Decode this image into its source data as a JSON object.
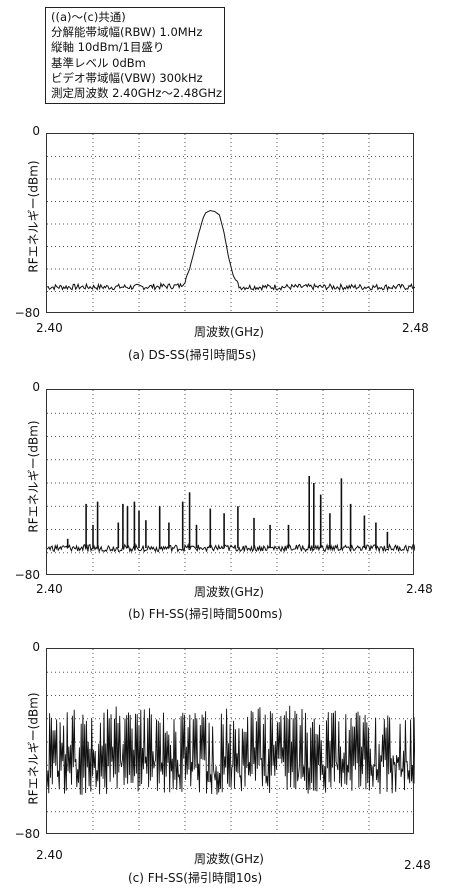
{
  "legend": {
    "lines": [
      "((a)～(c)共通)",
      "分解能帯域幅(RBW) 1.0MHz",
      "縦軸 10dBm/1目盛り",
      "基準レベル 0dBm",
      "ビデオ帯域幅(VBW) 300kHz",
      "測定周波数 2.40GHz～2.48GHz"
    ]
  },
  "chart_data": [
    {
      "type": "line",
      "title": "",
      "caption": "(a) DS-SS(掃引時間5s)",
      "xlabel": "周波数(GHz)",
      "ylabel": "RFエネルギー(dBm)",
      "x_tick_labels": [
        "2.40",
        "2.48"
      ],
      "y_tick_labels": [
        "0",
        "−80"
      ],
      "xlim": [
        2.4,
        2.48
      ],
      "ylim": [
        -80,
        0
      ],
      "grid": true,
      "series": [
        {
          "x": [
            2.4,
            2.42,
            2.429,
            2.43,
            2.431,
            2.432,
            2.433,
            2.434,
            2.4345,
            2.4355,
            2.4365,
            2.4375,
            2.4385,
            2.4395,
            2.4405,
            2.4415,
            2.442,
            2.48
          ],
          "y": [
            -68,
            -68,
            -67.5,
            -65,
            -60,
            -52,
            -44,
            -37,
            -35,
            -34,
            -34.5,
            -36,
            -44,
            -55,
            -63,
            -67,
            -68,
            -68
          ]
        }
      ]
    },
    {
      "type": "line",
      "title": "",
      "caption": "(b) FH-SS(掃引時間500ms)",
      "xlabel": "周波数(GHz)",
      "ylabel": "RFエネルギー(dBm)",
      "x_tick_labels": [
        "2.40",
        "2.48"
      ],
      "y_tick_labels": [
        "0",
        "−80"
      ],
      "xlim": [
        2.4,
        2.48
      ],
      "ylim": [
        -80,
        0
      ],
      "grid": true,
      "series": [
        {
          "x": [
            2.4045,
            2.4085,
            2.41,
            2.411,
            2.4155,
            2.4165,
            2.4175,
            2.419,
            2.42,
            2.4215,
            2.4245,
            2.4265,
            2.4295,
            2.431,
            2.4325,
            2.4355,
            2.4385,
            2.4415,
            2.445,
            2.4485,
            2.4525,
            2.457,
            2.458,
            2.4595,
            2.4615,
            2.464,
            2.466,
            2.469,
            2.4715,
            2.474
          ],
          "y": [
            -64,
            -49,
            -58,
            -48,
            -57,
            -49,
            -50,
            -48,
            -52,
            -56,
            -50,
            -57,
            -48,
            -44,
            -58,
            -51,
            -53,
            -50,
            -55,
            -58,
            -58,
            -37,
            -40,
            -45,
            -53,
            -38,
            -49,
            -54,
            -57,
            -61
          ]
        }
      ]
    },
    {
      "type": "line",
      "title": "",
      "caption": "(c) FH-SS(掃引時間10s)",
      "xlabel": "周波数(GHz)",
      "ylabel": "RFエネルギー(dBm)",
      "x_tick_labels": [
        "2.40",
        "2.48"
      ],
      "y_tick_labels": [
        "0",
        "−80"
      ],
      "xlim": [
        2.4,
        2.48
      ],
      "ylim": [
        -80,
        0
      ],
      "grid": true,
      "series": [
        {
          "x": [
            2.4,
            2.404,
            2.408,
            2.412,
            2.416,
            2.42,
            2.424,
            2.428,
            2.432,
            2.436,
            2.44,
            2.444,
            2.448,
            2.452,
            2.456,
            2.46,
            2.464,
            2.468,
            2.472,
            2.476,
            2.48
          ],
          "y": [
            -58,
            -22,
            -62,
            -25,
            -55,
            -23,
            -63,
            -28,
            -50,
            -24,
            -60,
            -26,
            -56,
            -23,
            -62,
            -25,
            -57,
            -28,
            -60,
            -26,
            -58
          ]
        }
      ]
    }
  ]
}
